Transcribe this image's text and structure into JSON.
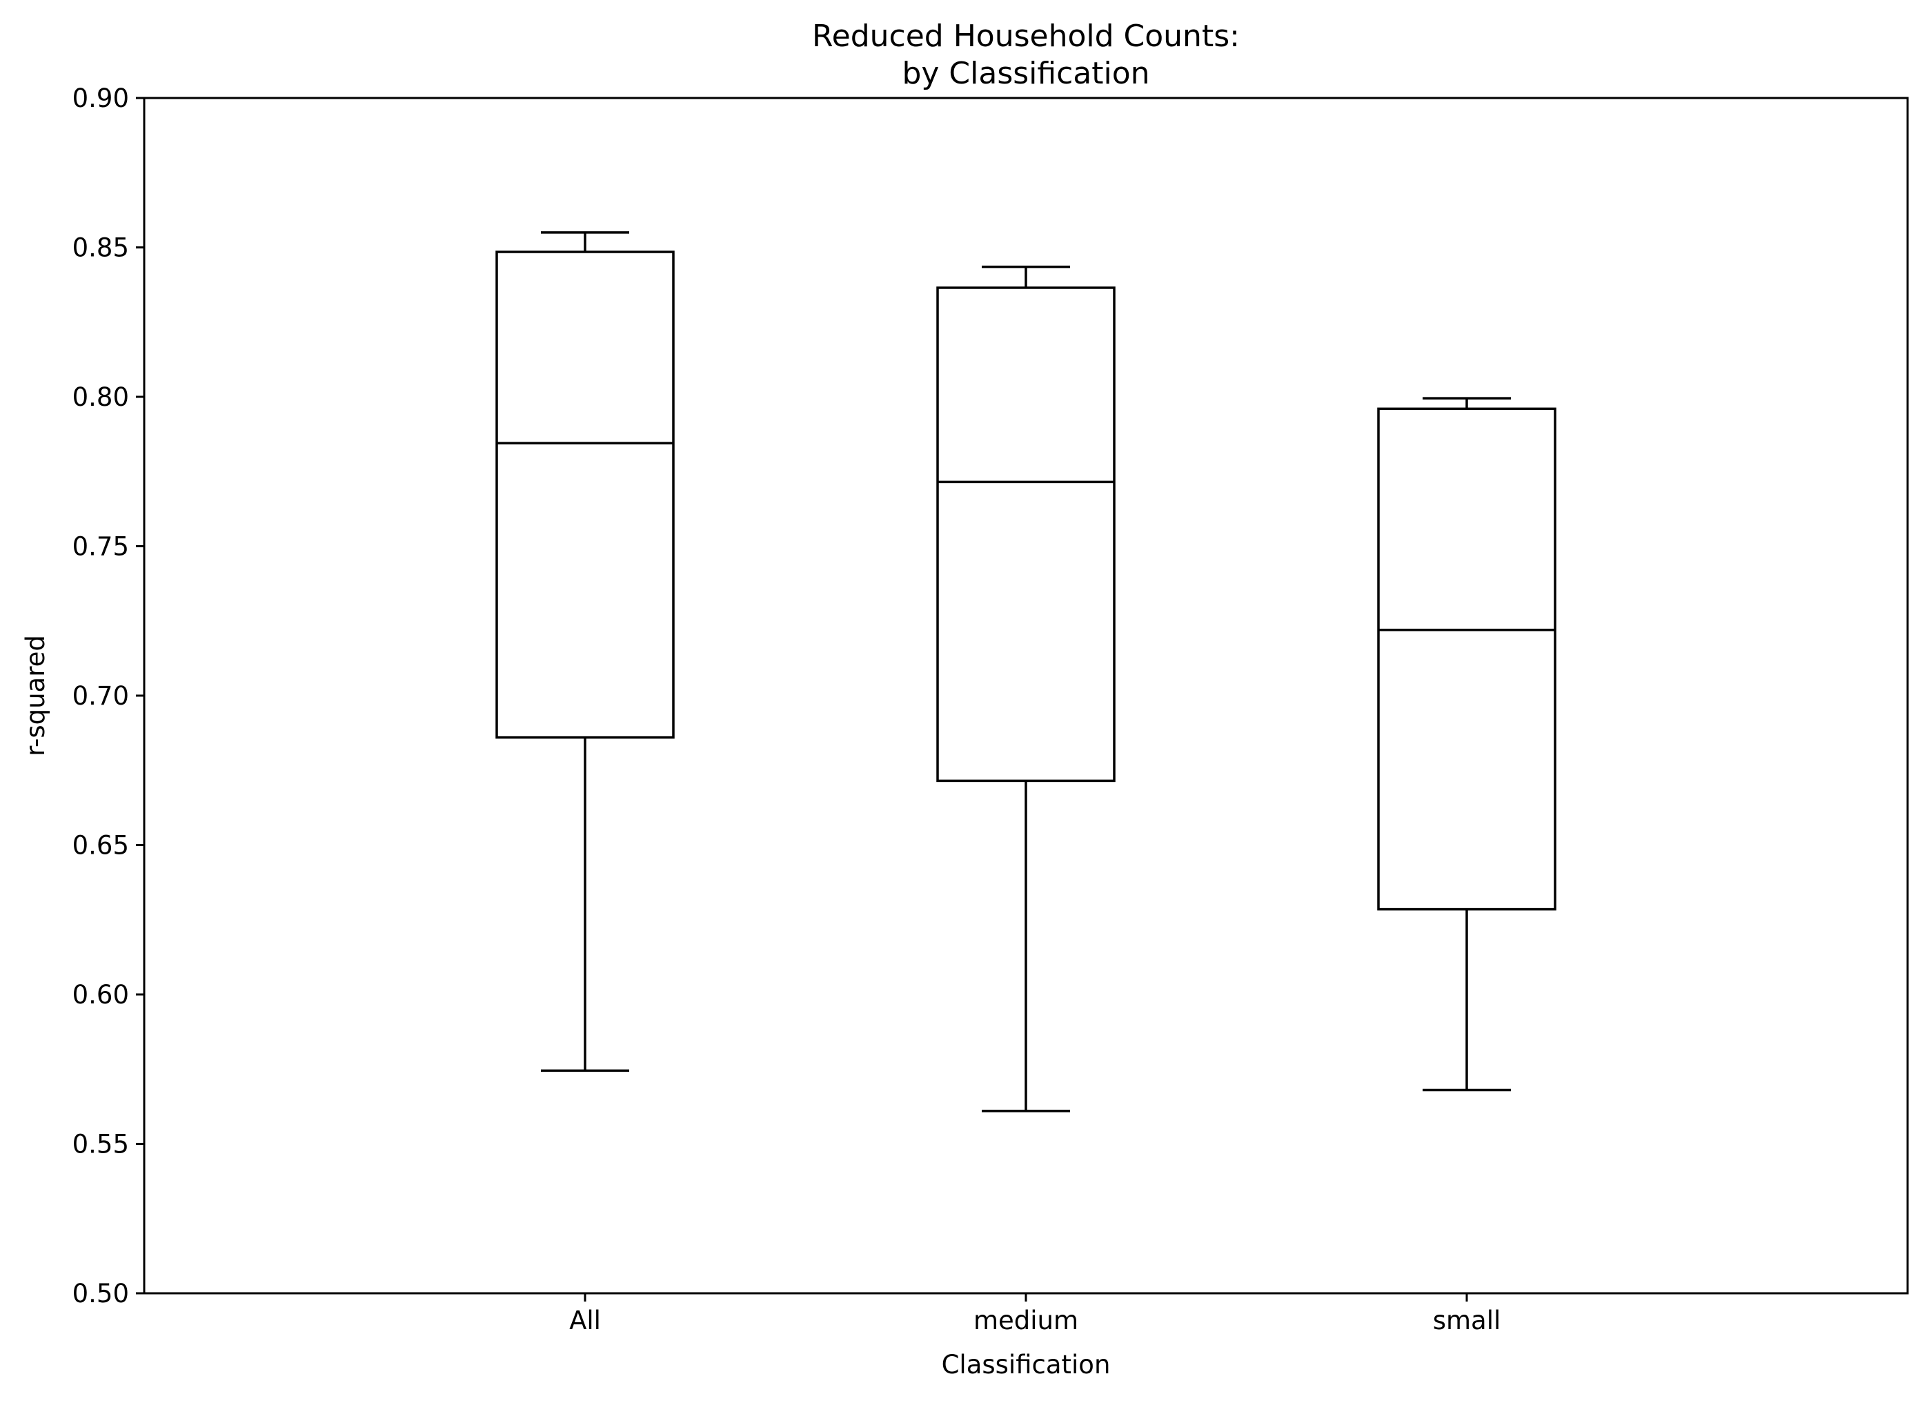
{
  "chart_data": {
    "type": "box",
    "title": "Reduced Household Counts:",
    "subtitle": "by Classification",
    "xlabel": "Classification",
    "ylabel": "r-squared",
    "ylim": [
      0.5,
      0.9
    ],
    "yticks": [
      0.5,
      0.55,
      0.6,
      0.65,
      0.7,
      0.75,
      0.8,
      0.85,
      0.9
    ],
    "ytick_labels": [
      "0.50",
      "0.55",
      "0.60",
      "0.65",
      "0.70",
      "0.75",
      "0.80",
      "0.85",
      "0.90"
    ],
    "grid": false,
    "legend": "none",
    "colors": {
      "line": "#000000",
      "background": "#ffffff"
    },
    "categories": [
      "All",
      "medium",
      "small"
    ],
    "boxes": [
      {
        "category": "All",
        "whisker_low": 0.5745,
        "q1": 0.686,
        "median": 0.7845,
        "q3": 0.8485,
        "whisker_high": 0.855
      },
      {
        "category": "medium",
        "whisker_low": 0.561,
        "q1": 0.6715,
        "median": 0.7715,
        "q3": 0.8365,
        "whisker_high": 0.8435
      },
      {
        "category": "small",
        "whisker_low": 0.568,
        "q1": 0.6285,
        "median": 0.722,
        "q3": 0.796,
        "whisker_high": 0.7995
      }
    ]
  }
}
